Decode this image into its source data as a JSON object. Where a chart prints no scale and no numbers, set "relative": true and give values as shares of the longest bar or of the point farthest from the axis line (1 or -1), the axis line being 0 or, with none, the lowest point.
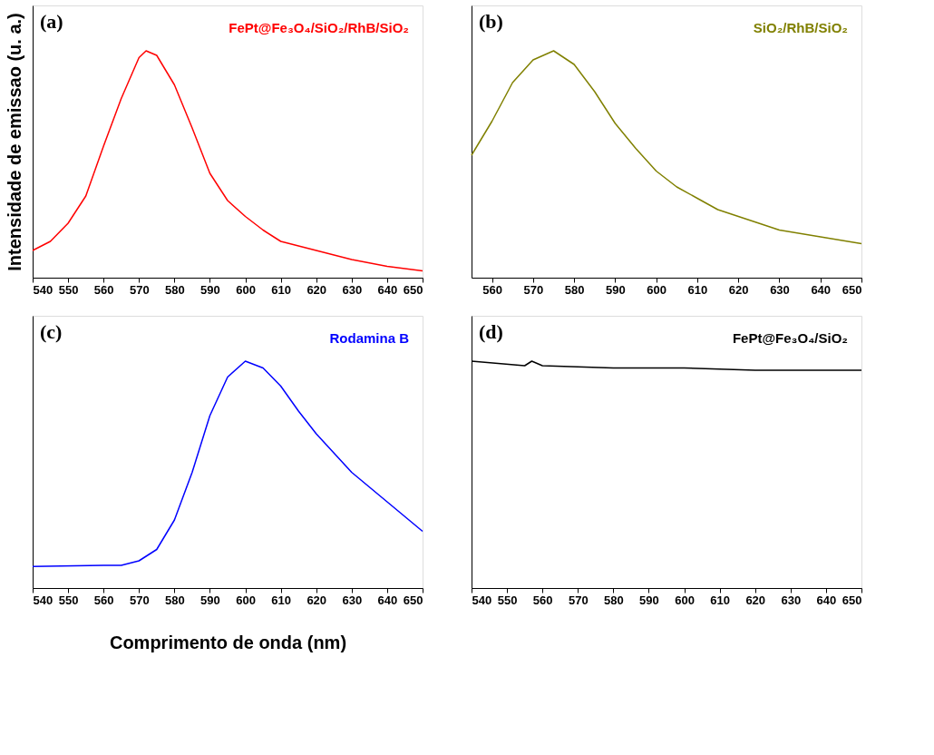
{
  "chart_data": [
    {
      "type": "line",
      "relative": true,
      "annotations": [
        "(a)"
      ],
      "ylabel": "Intensidade de emissao (u. a.)",
      "xlim": [
        540,
        650
      ],
      "xticks": [
        540,
        550,
        560,
        570,
        580,
        590,
        600,
        610,
        620,
        630,
        640,
        650
      ],
      "tick_labels": "x",
      "grid": false,
      "x": [
        540,
        545,
        550,
        555,
        560,
        565,
        570,
        572,
        575,
        580,
        585,
        590,
        595,
        600,
        605,
        610,
        620,
        630,
        640,
        650
      ],
      "series": [
        {
          "name": "FePt@Fe₃O₄/SiO₂/RhB/SiO₂",
          "color": "#ff0000",
          "values": [
            0.12,
            0.16,
            0.24,
            0.36,
            0.58,
            0.79,
            0.97,
            1,
            0.98,
            0.85,
            0.66,
            0.46,
            0.34,
            0.27,
            0.21,
            0.16,
            0.12,
            0.08,
            0.05,
            0.03
          ]
        }
      ]
    },
    {
      "type": "line",
      "relative": true,
      "annotations": [
        "(b)"
      ],
      "xlim": [
        555,
        650
      ],
      "xticks": [
        560,
        570,
        580,
        590,
        600,
        610,
        620,
        630,
        640,
        650
      ],
      "tick_labels": "x",
      "grid": false,
      "x": [
        555,
        560,
        565,
        570,
        575,
        580,
        585,
        590,
        595,
        600,
        605,
        610,
        615,
        620,
        625,
        630,
        640,
        650
      ],
      "series": [
        {
          "name": "SiO₂/RhB/SiO₂",
          "color": "#808000",
          "values": [
            0.54,
            0.69,
            0.86,
            0.96,
            1,
            0.94,
            0.82,
            0.68,
            0.57,
            0.47,
            0.4,
            0.35,
            0.3,
            0.27,
            0.24,
            0.21,
            0.18,
            0.15
          ]
        }
      ]
    },
    {
      "type": "line",
      "relative": true,
      "annotations": [
        "(c)"
      ],
      "xlabel": "Comprimento de onda (nm)",
      "xlim": [
        540,
        650
      ],
      "xticks": [
        540,
        550,
        560,
        570,
        580,
        590,
        600,
        610,
        620,
        630,
        640,
        650
      ],
      "tick_labels": "x",
      "grid": false,
      "x": [
        540,
        560,
        565,
        570,
        575,
        580,
        585,
        590,
        595,
        600,
        605,
        610,
        615,
        620,
        630,
        640,
        650
      ],
      "series": [
        {
          "name": "Rodamina B",
          "color": "#0000ff",
          "values": [
            0.095,
            0.1,
            0.1,
            0.12,
            0.17,
            0.3,
            0.51,
            0.76,
            0.93,
            1,
            0.97,
            0.89,
            0.78,
            0.68,
            0.51,
            0.38,
            0.25
          ]
        }
      ]
    },
    {
      "type": "line",
      "relative": true,
      "annotations": [
        "(d)"
      ],
      "xlim": [
        540,
        650
      ],
      "xticks": [
        540,
        550,
        560,
        570,
        580,
        590,
        600,
        610,
        620,
        630,
        640,
        650
      ],
      "tick_labels": "x",
      "grid": false,
      "x": [
        540,
        555,
        557,
        560,
        580,
        600,
        620,
        650
      ],
      "series": [
        {
          "name": "FePt@Fe₃O₄/SiO₂",
          "color": "#000000",
          "values": [
            1,
            0.98,
            1,
            0.98,
            0.97,
            0.97,
            0.96,
            0.96
          ]
        }
      ]
    }
  ]
}
